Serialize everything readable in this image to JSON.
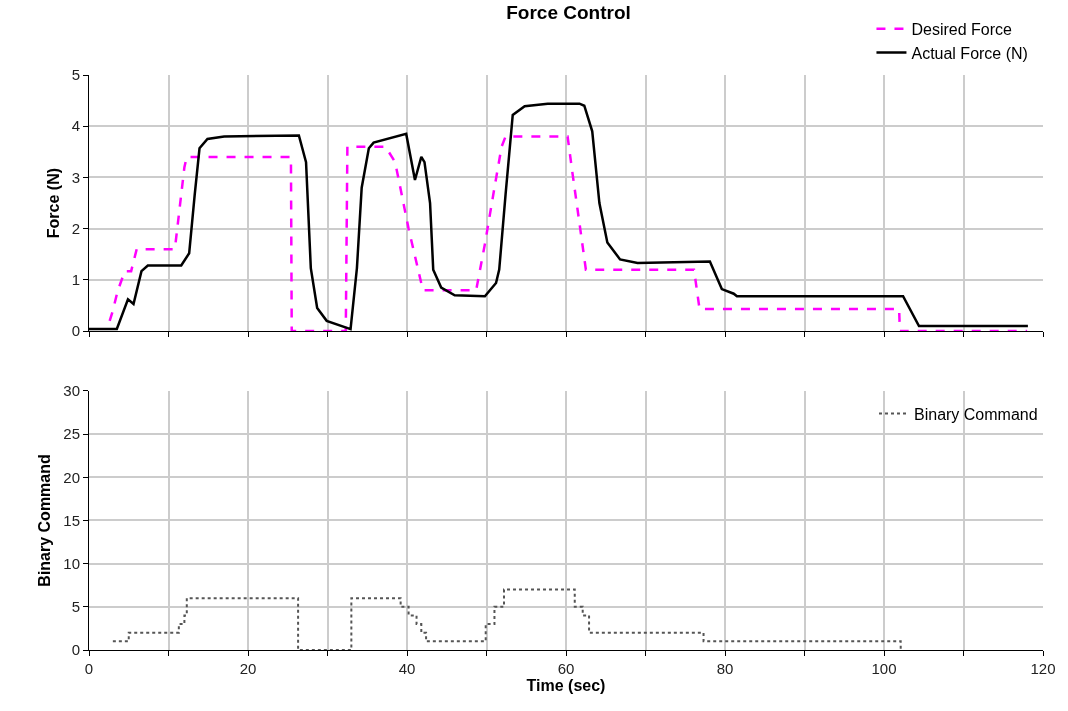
{
  "chart_data": [
    {
      "type": "line",
      "title": "Force Control",
      "ylabel": "Force (N)",
      "xlim": [
        0,
        120
      ],
      "ylim": [
        0,
        5
      ],
      "xticks": [
        {
          "value": 0,
          "label": null
        },
        {
          "value": 10,
          "label": null
        },
        {
          "value": 20,
          "label": null
        },
        {
          "value": 30,
          "label": null
        },
        {
          "value": 40,
          "label": null
        },
        {
          "value": 50,
          "label": null
        },
        {
          "value": 60,
          "label": null
        },
        {
          "value": 70,
          "label": null
        },
        {
          "value": 80,
          "label": null
        },
        {
          "value": 90,
          "label": null
        },
        {
          "value": 100,
          "label": null
        },
        {
          "value": 110,
          "label": null
        },
        {
          "value": 120,
          "label": null
        }
      ],
      "yticks": [
        0,
        1,
        2,
        3,
        4,
        5
      ],
      "tick_labels": "y",
      "grid": true,
      "legend": "top right",
      "marker": "none",
      "series": [
        {
          "name": "Desired Force",
          "color": "#ff00ff",
          "line_style": "dashed",
          "x": [
            2.6,
            3.0,
            3.6,
            4.5,
            5.3,
            6.0,
            10.8,
            11.4,
            12.0,
            12.3,
            25.4,
            25.5,
            32.3,
            32.5,
            37.3,
            38.5,
            38.9,
            40.2,
            41.4,
            42.0,
            48.7,
            49.8,
            51.0,
            51.9,
            52.4,
            60.2,
            60.8,
            61.7,
            62.5,
            76.1,
            76.8,
            101.9,
            102.0,
            118.0
          ],
          "values": [
            0.2,
            0.4,
            0.78,
            1.17,
            1.17,
            1.6,
            1.6,
            2.4,
            3.2,
            3.4,
            3.4,
            0,
            0,
            3.6,
            3.6,
            3.3,
            3.0,
            2.0,
            1.2,
            0.8,
            0.8,
            1.7,
            2.8,
            3.6,
            3.8,
            3.8,
            3.1,
            2.1,
            1.2,
            1.2,
            0.43,
            0.43,
            0,
            0
          ]
        },
        {
          "name": "Actual Force (N)",
          "color": "#000000",
          "line_style": "solid",
          "x": [
            0,
            3.5,
            4.9,
            5.6,
            6.6,
            7.4,
            11.6,
            12.6,
            13.3,
            13.9,
            14.9,
            17.0,
            26.4,
            27.3,
            27.9,
            28.7,
            29.9,
            32.9,
            33.7,
            34.3,
            35.2,
            35.8,
            39.9,
            41.0,
            41.8,
            42.2,
            42.9,
            43.3,
            44.3,
            46.0,
            49.8,
            51.2,
            51.6,
            52.4,
            53.3,
            54.8,
            57.7,
            61.7,
            62.3,
            63.3,
            64.2,
            65.2,
            66.8,
            69.0,
            78.1,
            79.6,
            81.1,
            81.5,
            102.4,
            104.4,
            118.1
          ],
          "values": [
            0.04,
            0.04,
            0.62,
            0.53,
            1.17,
            1.28,
            1.28,
            1.52,
            2.67,
            3.57,
            3.75,
            3.8,
            3.82,
            3.3,
            1.23,
            0.45,
            0.2,
            0.04,
            1.23,
            2.8,
            3.57,
            3.68,
            3.85,
            2.95,
            3.4,
            3.3,
            2.5,
            1.2,
            0.85,
            0.7,
            0.68,
            0.94,
            1.2,
            2.67,
            4.22,
            4.39,
            4.44,
            4.44,
            4.4,
            3.9,
            2.5,
            1.73,
            1.4,
            1.33,
            1.36,
            0.82,
            0.73,
            0.68,
            0.68,
            0.1,
            0.1
          ]
        }
      ]
    },
    {
      "type": "step",
      "ylabel": "Binary Command",
      "xlabel": "Time (sec)",
      "xlim": [
        0,
        120
      ],
      "ylim": [
        0,
        30
      ],
      "xticks": [
        0,
        {
          "value": 10,
          "label": null
        },
        20,
        {
          "value": 30,
          "label": null
        },
        40,
        {
          "value": 50,
          "label": null
        },
        60,
        {
          "value": 70,
          "label": null
        },
        80,
        {
          "value": 90,
          "label": null
        },
        100,
        {
          "value": 110,
          "label": null
        },
        120
      ],
      "yticks": [
        0,
        5,
        10,
        15,
        20,
        25,
        30
      ],
      "grid": true,
      "legend": "top right",
      "marker": "none",
      "series": [
        {
          "name": "Binary Command",
          "color": "#555555",
          "line_style": "dotted",
          "x": [
            3.0,
            5.0,
            11.3,
            12.0,
            12.3,
            26.3,
            33.0,
            39.2,
            40.2,
            41.2,
            41.8,
            42.4,
            49.9,
            51.0,
            52.2,
            61.1,
            62.1,
            62.9,
            77.3,
            102.1
          ],
          "values": [
            1,
            2,
            3,
            4,
            6,
            0,
            6,
            5,
            4,
            3,
            2,
            1,
            3,
            5,
            7,
            5,
            4,
            2,
            1,
            0
          ]
        }
      ]
    }
  ]
}
